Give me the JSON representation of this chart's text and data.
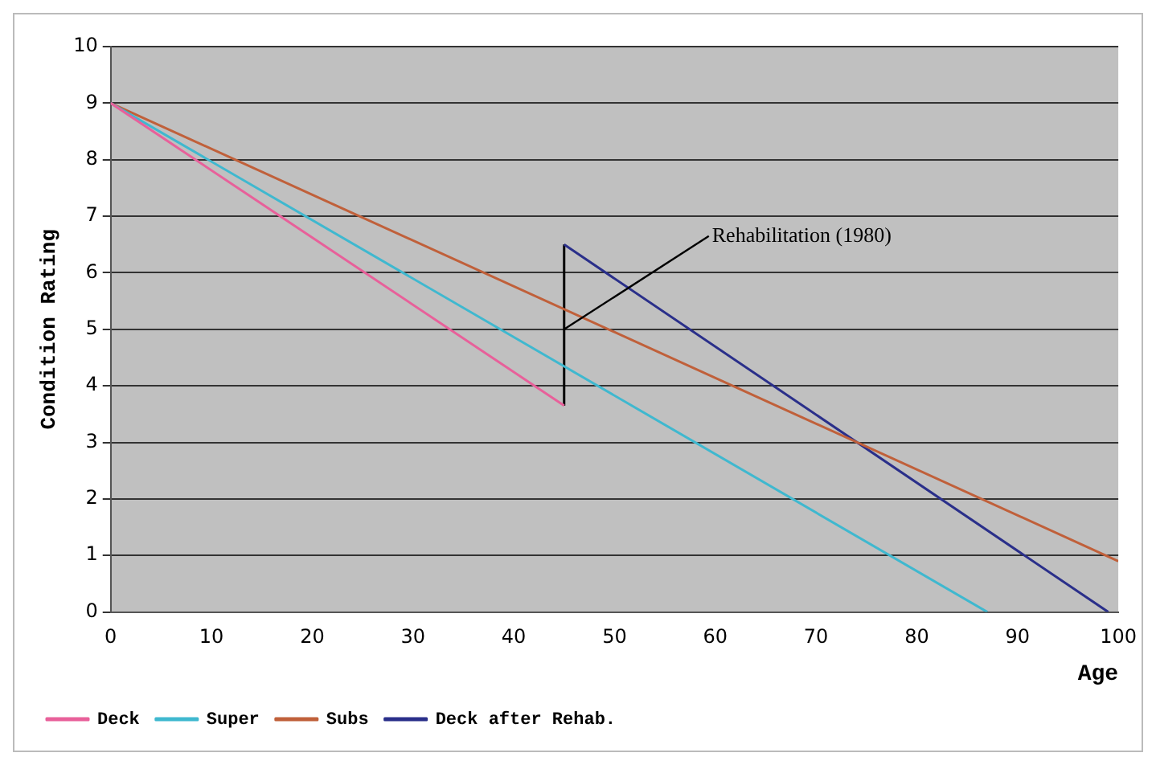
{
  "chart_data": {
    "type": "line",
    "xlabel": "Age",
    "ylabel": "Condition Rating",
    "xlim": [
      0,
      100
    ],
    "xticks": [
      0,
      10,
      20,
      30,
      40,
      50,
      60,
      70,
      80,
      90,
      100
    ],
    "ylim": [
      0,
      10
    ],
    "yticks": [
      0,
      1,
      2,
      3,
      4,
      5,
      6,
      7,
      8,
      9,
      10
    ],
    "grid": "y",
    "legend": "bottom left",
    "marker": "none",
    "line_style": "solid",
    "series": [
      {
        "name": "Deck",
        "color": "#e8609a",
        "x": [
          0,
          45
        ],
        "values": [
          9,
          3.65
        ]
      },
      {
        "name": "Super",
        "color": "#3fb8cf",
        "x": [
          0,
          87
        ],
        "values": [
          9,
          0
        ]
      },
      {
        "name": "Subs",
        "color": "#c0603a",
        "x": [
          0,
          100
        ],
        "values": [
          9,
          0.9
        ]
      },
      {
        "name": "Deck after Rehab.",
        "color": "#2a2f8a",
        "x": [
          45,
          99
        ],
        "values": [
          6.5,
          0
        ]
      },
      {
        "color": "#000000",
        "x": [
          45,
          45
        ],
        "values": [
          3.65,
          6.5
        ]
      }
    ],
    "annotations": [
      {
        "text": "Rehabilitation (1980)",
        "x": 45,
        "y": 5
      }
    ]
  }
}
